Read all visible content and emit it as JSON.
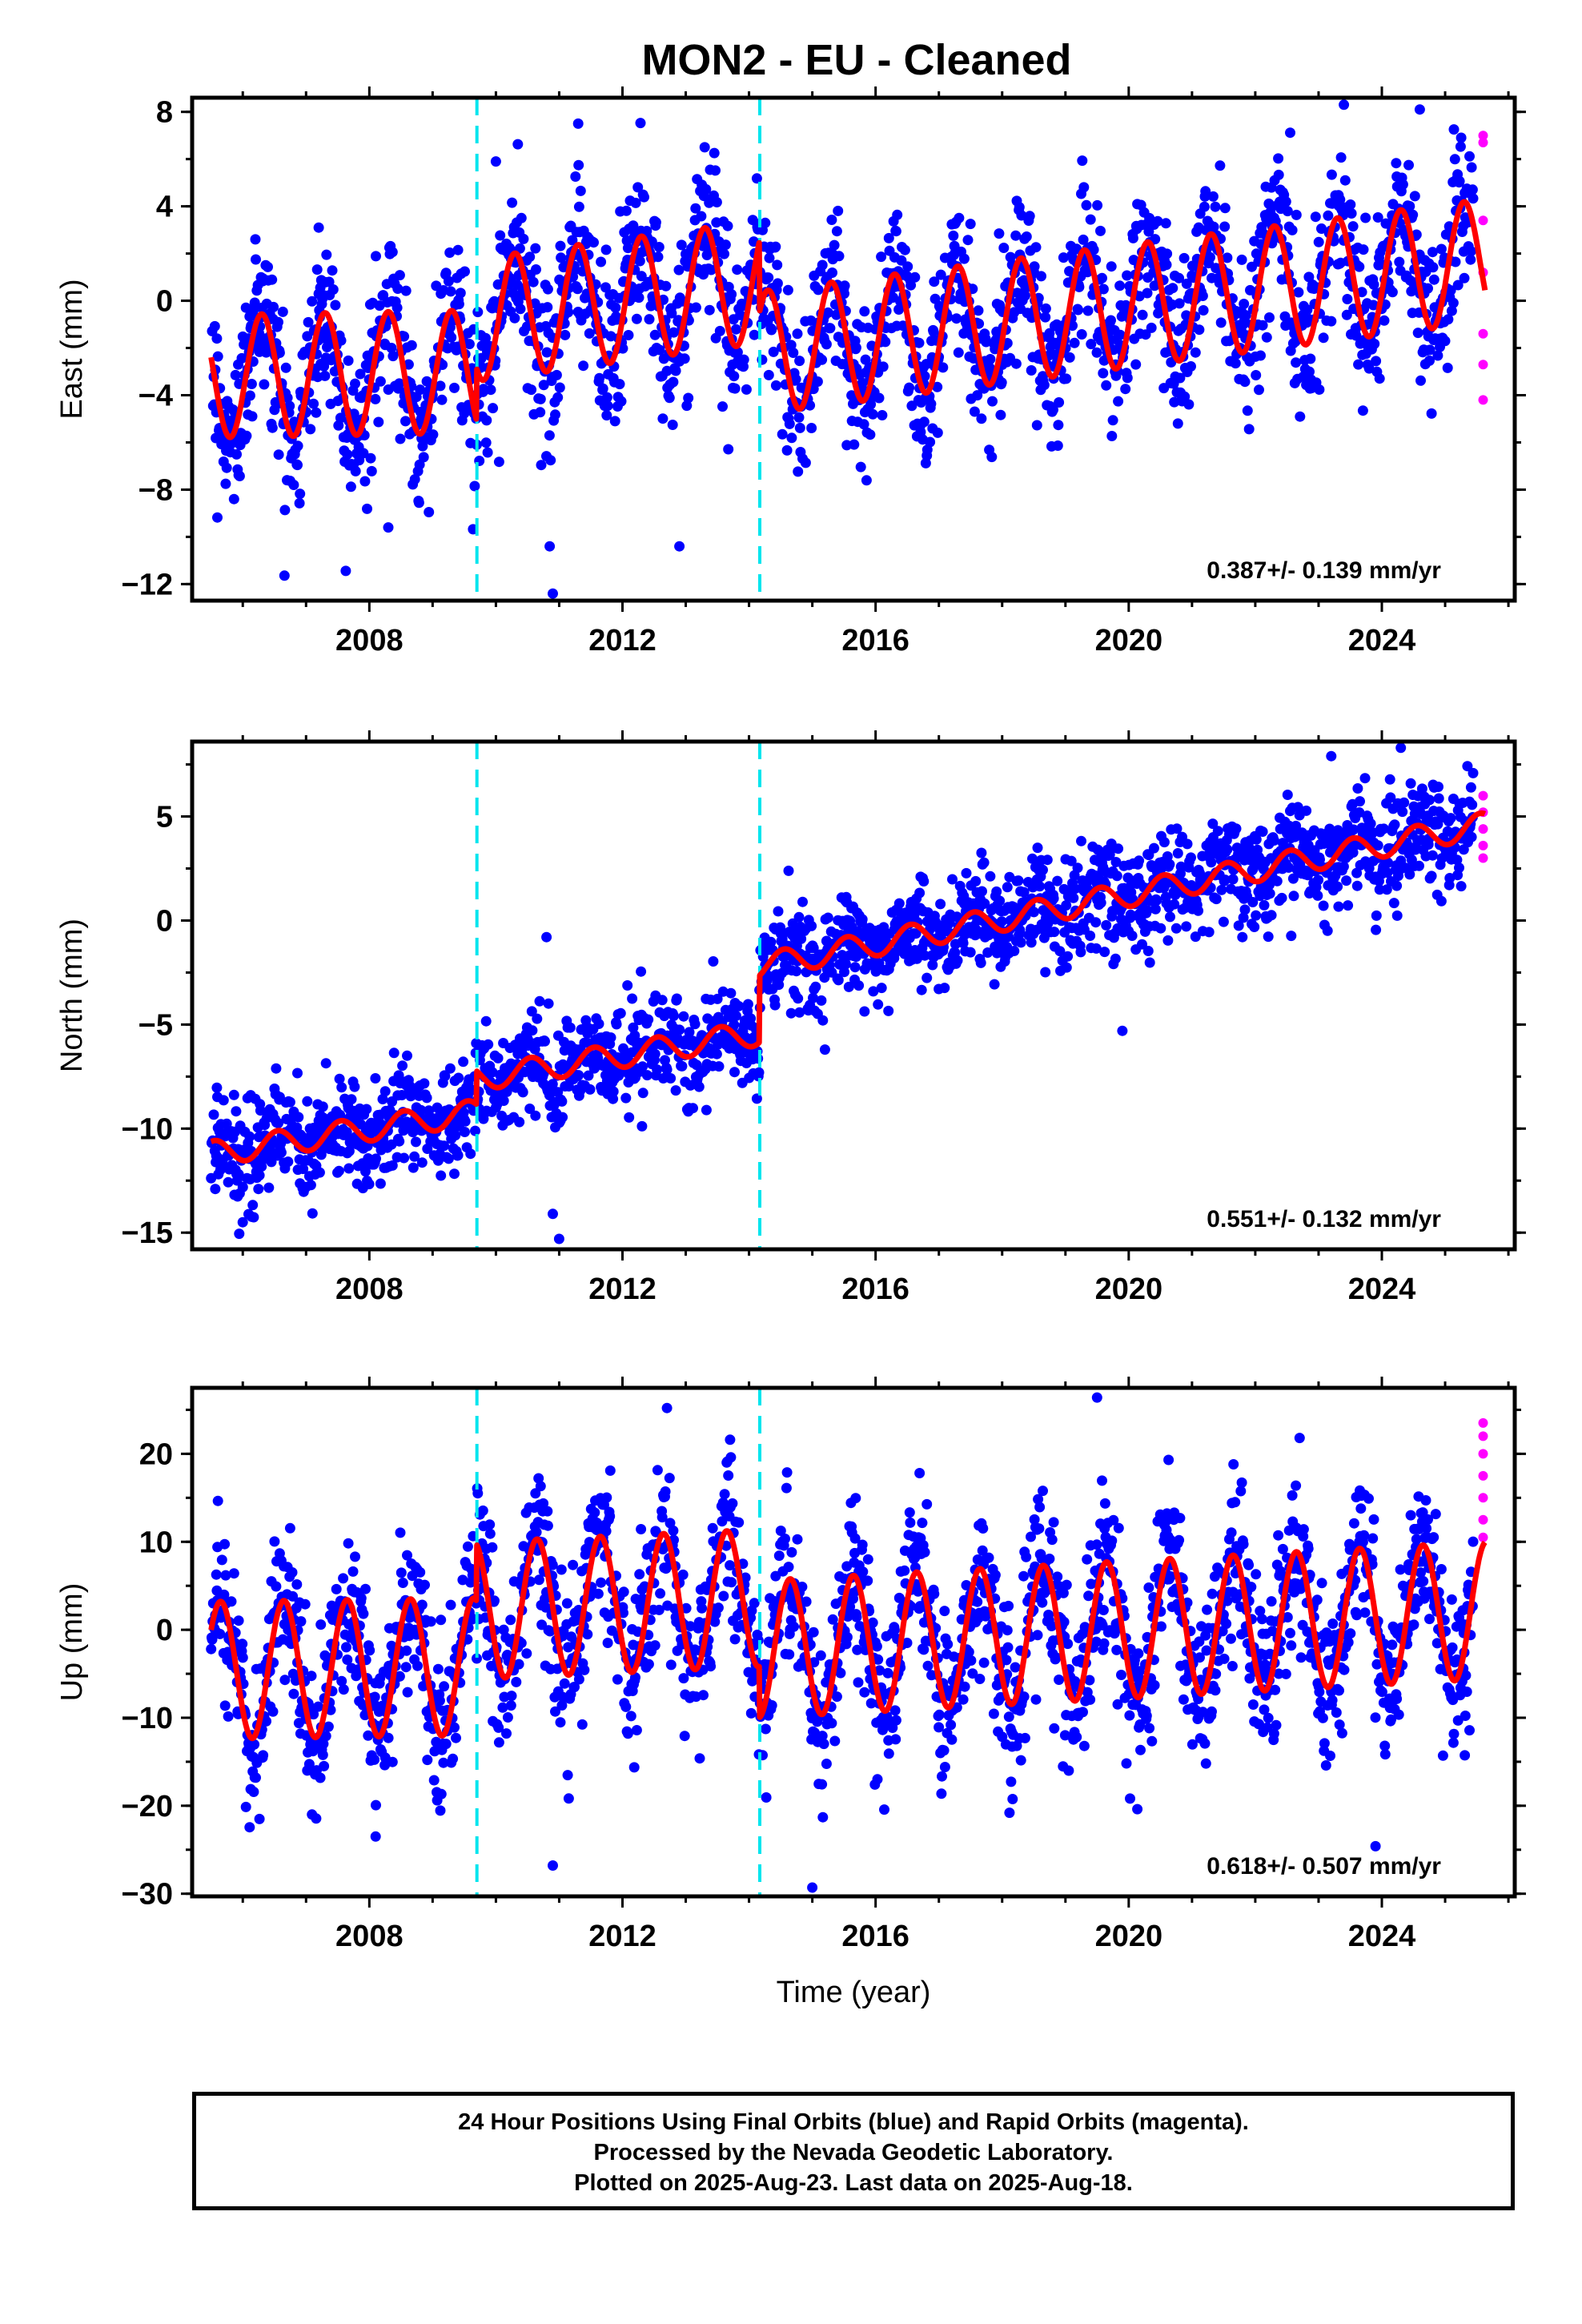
{
  "title": "MON2  - EU - Cleaned",
  "caption": {
    "line1": "24 Hour Positions Using Final Orbits (blue) and Rapid Orbits (magenta).",
    "line2": "Processed by the Nevada Geodetic Laboratory.",
    "line3": "Plotted on 2025-Aug-23. Last data on 2025-Aug-18."
  },
  "colors": {
    "final_orbits": "#0000ff",
    "rapid_orbits": "#ff00ff",
    "model": "#ff0000",
    "offsets": "#00e5ee"
  },
  "chart_data": [
    {
      "type": "scatter",
      "panel": "east",
      "title": "",
      "xlabel": "",
      "ylabel": "East (mm)",
      "xlim": [
        2005.2,
        2026.1
      ],
      "ylim": [
        -12.7,
        8.6
      ],
      "xticks": [
        "2008",
        "2012",
        "2016",
        "2020",
        "2024"
      ],
      "yticks": [
        "8",
        "4",
        "0",
        "-4",
        "-8",
        "-12"
      ],
      "rate_text": "0.387+/- 0.139 mm/yr",
      "offsets": [
        2009.7,
        2014.17
      ],
      "first_data": 2005.5,
      "last_final": 2025.45,
      "last_rapid": 2025.63,
      "model": {
        "segments": [
          {
            "x": [
              2005.5,
              2009.7
            ],
            "y": [
              -3.2,
              -3.0
            ]
          },
          {
            "x": [
              2009.7,
              2014.17
            ],
            "y": [
              -0.8,
              0.8
            ]
          },
          {
            "x": [
              2014.17,
              2025.63
            ],
            "y": [
              -2.2,
              1.7
            ]
          }
        ],
        "annual_amplitude": 2.6,
        "peak_phase": 0.3
      },
      "scatter_sigma": 1.7,
      "sample_points": [
        [
          2008.3,
          -9.6
        ],
        [
          2010.9,
          -12.4
        ],
        [
          2010.85,
          -10.4
        ],
        [
          2012.9,
          -10.4
        ],
        [
          2010.0,
          5.9
        ],
        [
          2013.3,
          6.5
        ],
        [
          2023.4,
          8.3
        ],
        [
          2024.6,
          8.1
        ],
        [
          2011.3,
          7.5
        ],
        [
          2006.2,
          2.6
        ],
        [
          2007.2,
          3.1
        ]
      ],
      "rapid_points": [
        [
          2025.6,
          7.0
        ],
        [
          2025.6,
          6.7
        ],
        [
          2025.6,
          3.4
        ],
        [
          2025.6,
          1.2
        ],
        [
          2025.6,
          -1.4
        ],
        [
          2025.6,
          -2.7
        ],
        [
          2025.6,
          -4.2
        ]
      ]
    },
    {
      "type": "scatter",
      "panel": "north",
      "title": "",
      "xlabel": "",
      "ylabel": "North (mm)",
      "xlim": [
        2005.2,
        2026.1
      ],
      "ylim": [
        -15.8,
        8.6
      ],
      "xticks": [
        "2008",
        "2012",
        "2016",
        "2020",
        "2024"
      ],
      "yticks": [
        "5",
        "0",
        "-5",
        "-10",
        "-15"
      ],
      "rate_text": "0.551+/- 0.132 mm/yr",
      "offsets": [
        2009.7,
        2014.17
      ],
      "first_data": 2005.5,
      "last_final": 2025.45,
      "last_rapid": 2025.63,
      "model": {
        "segments": [
          {
            "x": [
              2005.5,
              2009.7
            ],
            "y": [
              -11.2,
              -9.2
            ]
          },
          {
            "x": [
              2009.7,
              2014.17
            ],
            "y": [
              -7.6,
              -5.4
            ]
          },
          {
            "x": [
              2014.17,
              2025.63
            ],
            "y": [
              -2.2,
              4.6
            ]
          }
        ],
        "annual_amplitude": 0.6,
        "peak_phase": 0.55
      },
      "scatter_sigma": 1.2,
      "sample_points": [
        [
          2011.0,
          -15.3
        ],
        [
          2010.9,
          -14.1
        ],
        [
          2006.0,
          -14.5
        ],
        [
          2023.2,
          7.9
        ],
        [
          2024.3,
          8.3
        ],
        [
          2010.8,
          -0.8
        ],
        [
          2019.9,
          -5.3
        ],
        [
          2015.2,
          -6.2
        ]
      ],
      "rapid_points": [
        [
          2025.6,
          6.0
        ],
        [
          2025.6,
          5.2
        ],
        [
          2025.6,
          4.4
        ],
        [
          2025.6,
          3.6
        ],
        [
          2025.6,
          3.0
        ]
      ]
    },
    {
      "type": "scatter",
      "panel": "up",
      "title": "",
      "xlabel": "Time (year)",
      "ylabel": "Up (mm)",
      "xlim": [
        2005.2,
        2026.1
      ],
      "ylim": [
        -30.3,
        27.5
      ],
      "xticks": [
        "2008",
        "2012",
        "2016",
        "2020",
        "2024"
      ],
      "yticks": [
        "20",
        "10",
        "0",
        "-10",
        "-20",
        "-30"
      ],
      "rate_text": "0.618+/- 0.507 mm/yr",
      "offsets": [
        2009.7,
        2014.17
      ],
      "first_data": 2005.5,
      "last_final": 2025.45,
      "last_rapid": 2025.63,
      "model": {
        "segments": [
          {
            "x": [
              2005.5,
              2009.7
            ],
            "y": [
              -4.6,
              -4.2
            ]
          },
          {
            "x": [
              2009.7,
              2014.17
            ],
            "y": [
              2.2,
              3.6
            ]
          },
          {
            "x": [
              2014.17,
              2025.63
            ],
            "y": [
              -2.2,
              2.2
            ]
          }
        ],
        "annual_amplitude": 7.8,
        "peak_phase": 0.65
      },
      "scatter_sigma": 4.5,
      "sample_points": [
        [
          2019.5,
          26.4
        ],
        [
          2015.0,
          -29.3
        ],
        [
          2023.9,
          -24.6
        ],
        [
          2010.9,
          -26.8
        ],
        [
          2013.7,
          21.6
        ],
        [
          2022.7,
          21.8
        ],
        [
          2008.1,
          -23.5
        ],
        [
          2005.6,
          9.4
        ]
      ],
      "rapid_points": [
        [
          2025.6,
          23.5
        ],
        [
          2025.6,
          22.0
        ],
        [
          2025.6,
          20.0
        ],
        [
          2025.6,
          17.5
        ],
        [
          2025.6,
          15.0
        ],
        [
          2025.6,
          12.5
        ],
        [
          2025.6,
          10.5
        ]
      ]
    }
  ]
}
